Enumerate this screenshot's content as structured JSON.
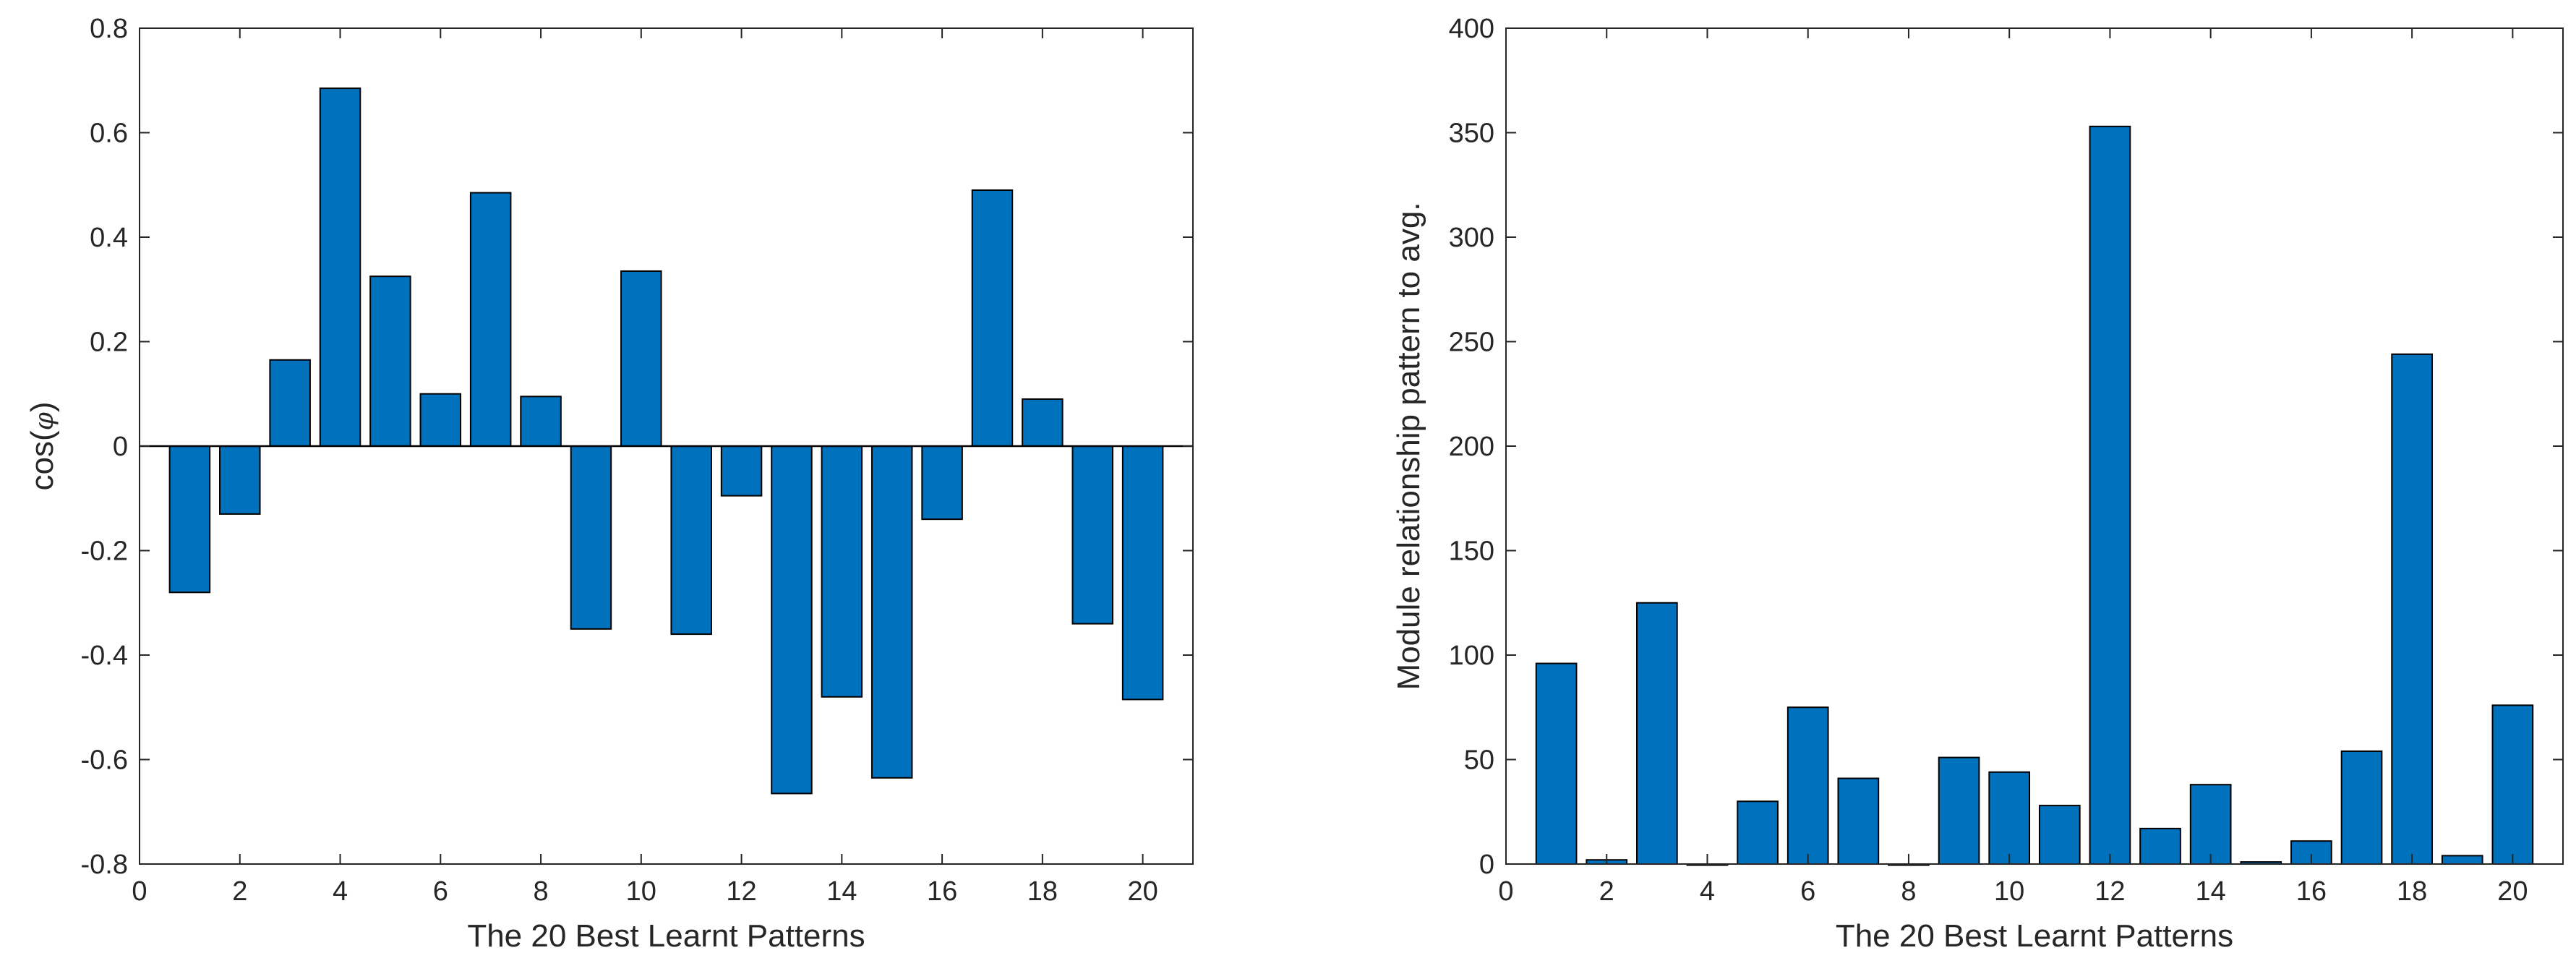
{
  "chart_data": [
    {
      "type": "bar",
      "title": "",
      "xlabel": "The 20 Best Learnt Patterns",
      "ylabel": "cos(φ)",
      "ylabel_prefix": "cos(",
      "ylabel_symbol": "φ",
      "ylabel_suffix": ")",
      "xlim": [
        0,
        21
      ],
      "ylim": [
        -0.8,
        0.8
      ],
      "xticks": [
        0,
        2,
        4,
        6,
        8,
        10,
        12,
        14,
        16,
        18,
        20
      ],
      "yticks": [
        -0.8,
        -0.6,
        -0.4,
        -0.2,
        0,
        0.2,
        0.4,
        0.6,
        0.8
      ],
      "ytick_labels": [
        "-0.8",
        "-0.6",
        "-0.4",
        "-0.2",
        "0",
        "0.2",
        "0.4",
        "0.6",
        "0.8"
      ],
      "categories": [
        1,
        2,
        3,
        4,
        5,
        6,
        7,
        8,
        9,
        10,
        11,
        12,
        13,
        14,
        15,
        16,
        17,
        18,
        19,
        20
      ],
      "values": [
        -0.28,
        -0.13,
        0.165,
        0.685,
        0.325,
        0.1,
        0.485,
        0.095,
        -0.35,
        0.335,
        -0.36,
        -0.095,
        -0.665,
        -0.48,
        -0.635,
        -0.14,
        0.49,
        0.09,
        -0.34,
        -0.485
      ],
      "bar_color": "#0072BD",
      "baseline": 0
    },
    {
      "type": "bar",
      "title": "",
      "xlabel": "The 20 Best Learnt Patterns",
      "ylabel": "Module relationship pattern to avg.",
      "xlim": [
        0,
        21
      ],
      "ylim": [
        0,
        400
      ],
      "xticks": [
        0,
        2,
        4,
        6,
        8,
        10,
        12,
        14,
        16,
        18,
        20
      ],
      "yticks": [
        0,
        50,
        100,
        150,
        200,
        250,
        300,
        350,
        400
      ],
      "ytick_labels": [
        "0",
        "50",
        "100",
        "150",
        "200",
        "250",
        "300",
        "350",
        "400"
      ],
      "categories": [
        1,
        2,
        3,
        4,
        5,
        6,
        7,
        8,
        9,
        10,
        11,
        12,
        13,
        14,
        15,
        16,
        17,
        18,
        19,
        20
      ],
      "values": [
        96,
        2,
        125,
        0,
        30,
        75,
        41,
        0,
        51,
        44,
        28,
        353,
        17,
        38,
        1,
        11,
        54,
        244,
        4,
        76
      ],
      "bar_color": "#0072BD",
      "baseline": null
    }
  ]
}
